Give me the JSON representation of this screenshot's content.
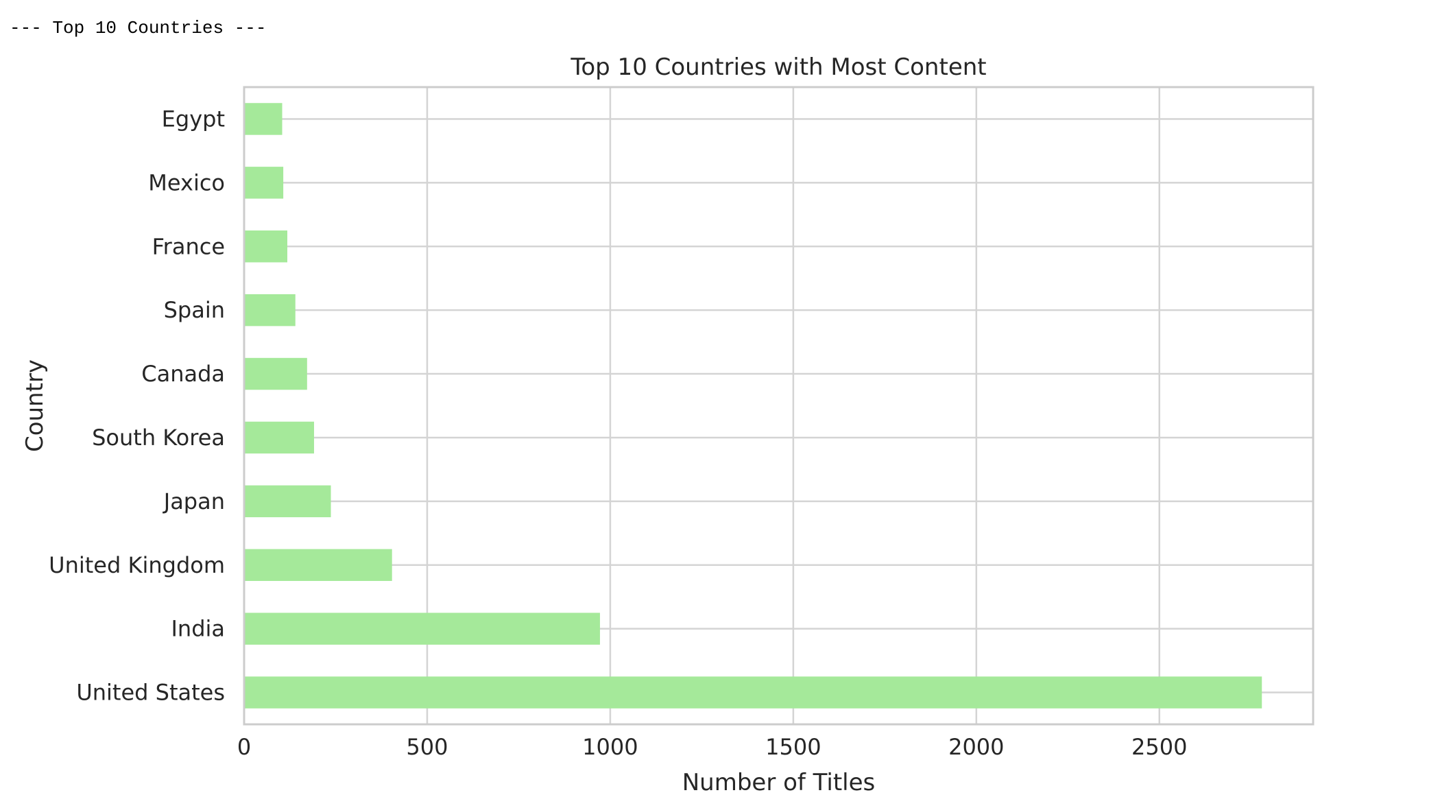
{
  "output_header": "--- Top 10 Countries ---",
  "chart_data": {
    "type": "bar",
    "orientation": "horizontal",
    "title": "Top 10 Countries with Most Content",
    "xlabel": "Number of Titles",
    "ylabel": "Country",
    "categories": [
      "United States",
      "India",
      "United Kingdom",
      "Japan",
      "South Korea",
      "Canada",
      "Spain",
      "France",
      "Mexico",
      "Egypt"
    ],
    "values": [
      2780,
      972,
      404,
      237,
      191,
      172,
      140,
      118,
      107,
      104
    ],
    "xlim": [
      0,
      2920
    ],
    "xticks": [
      0,
      500,
      1000,
      1500,
      2000,
      2500
    ],
    "grid": true,
    "bar_color": "#a5e99a"
  }
}
